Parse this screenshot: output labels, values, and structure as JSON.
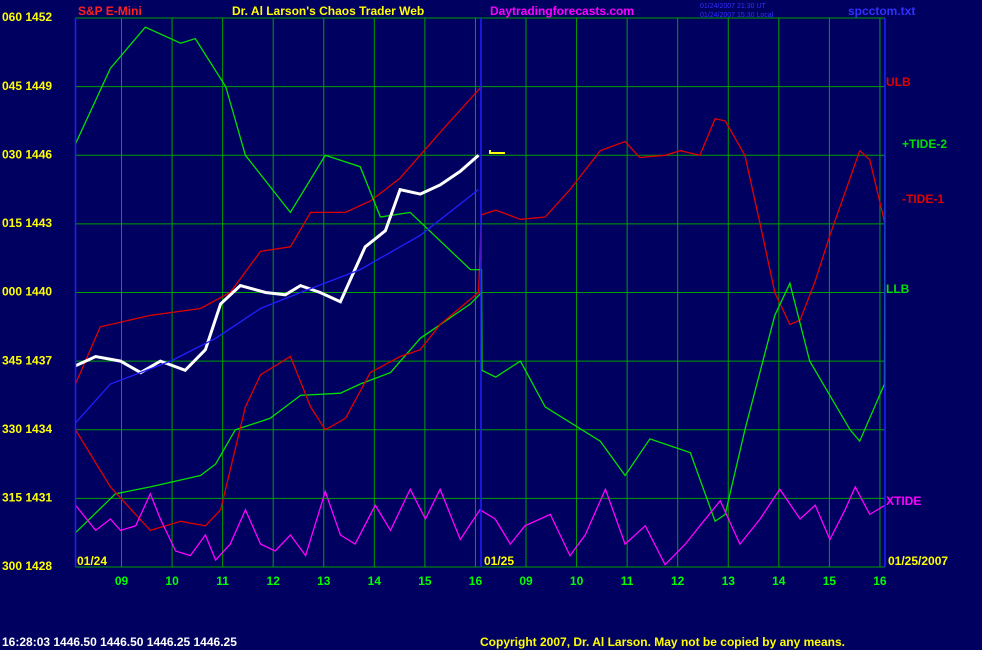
{
  "chart_data": {
    "type": "line",
    "title": "Dr. Al Larson's Chaos Trader Web",
    "instrument": "S&P E-Mini",
    "website": "Daytradingforecasts.com",
    "timestamp_lines": [
      "01/24/2007 21:30 UT",
      "01/24/2007 15:30 Local"
    ],
    "file_name": "spcctom.txt",
    "date_labels": [
      "01/24",
      "01/25",
      "01/25/2007"
    ],
    "status_line": "16:28:03  1446.50 1446.50 1446.25 1446.25",
    "copyright": "Copyright 2007, Dr. Al Larson. May not be copied by any means.",
    "xlim": [
      8.09,
      24.1
    ],
    "xticks": [
      {
        "value": 9,
        "label": "09"
      },
      10,
      11,
      12,
      13,
      14,
      15,
      16,
      {
        "value": 17,
        "label": "09"
      },
      {
        "value": 18,
        "label": "10"
      },
      {
        "value": 19,
        "label": "11"
      },
      {
        "value": 20,
        "label": "12"
      },
      {
        "value": 21,
        "label": "13"
      },
      {
        "value": 22,
        "label": "14"
      },
      {
        "value": 23,
        "label": "15"
      },
      {
        "value": 24,
        "label": "16"
      }
    ],
    "ylim": [
      1428,
      1452
    ],
    "yticks": [
      {
        "value": 1452,
        "label": "060 1452"
      },
      {
        "value": 1449,
        "label": "045 1449"
      },
      {
        "value": 1446,
        "label": "030 1446"
      },
      {
        "value": 1443,
        "label": "015 1443"
      },
      {
        "value": 1440,
        "label": "000 1440"
      },
      {
        "value": 1437,
        "label": "345 1437"
      },
      {
        "value": 1434,
        "label": "330 1434"
      },
      {
        "value": 1431,
        "label": "315 1431"
      },
      {
        "value": 1428,
        "label": "300 1428"
      }
    ],
    "grid": true,
    "series": [
      {
        "name": "ULB",
        "color": "#e00000",
        "x": [
          8.09,
          8.58,
          9.57,
          10.56,
          11.15,
          11.75,
          12.34,
          12.74,
          13.43,
          13.92,
          14.51,
          15.3,
          16.12
        ],
        "values": [
          1436,
          1438.5,
          1439,
          1439.3,
          1440,
          1441.8,
          1442,
          1443.5,
          1443.5,
          1444,
          1445,
          1447,
          1449
        ]
      },
      {
        "name": "LLB",
        "color": "#00e000",
        "x": [
          8.09,
          8.88,
          9.57,
          10.56,
          10.86,
          11.25,
          11.94,
          12.54,
          13.33,
          13.72,
          14.32,
          14.91,
          15.9,
          16.12
        ],
        "values": [
          1429.5,
          1431.2,
          1431.5,
          1432,
          1432.5,
          1434,
          1434.5,
          1435.5,
          1435.6,
          1436,
          1436.5,
          1438,
          1439.5,
          1440
        ]
      },
      {
        "name": "-TIDE-1",
        "color": "#e00000",
        "x": [
          8.09,
          8.78,
          9.57,
          10.17,
          10.66,
          10.96,
          11.45,
          11.75,
          12.34,
          12.74,
          13.03,
          13.43,
          13.92,
          14.51,
          14.91,
          15.3,
          16.06,
          16.12,
          16.4,
          16.89,
          17.38,
          17.87,
          18.47,
          18.96,
          19.25,
          19.75,
          20.05,
          20.44,
          20.74,
          20.94,
          21.33,
          21.63,
          21.92,
          22.22,
          22.42,
          22.72,
          23.01,
          23.41,
          23.6,
          23.8,
          24.1
        ],
        "values": [
          1434.0,
          1431.5,
          1429.6,
          1430.0,
          1429.8,
          1430.5,
          1435.0,
          1436.4,
          1437.2,
          1435.0,
          1434.0,
          1434.5,
          1436.5,
          1437.2,
          1437.5,
          1438.6,
          1440.0,
          1443.4,
          1443.6,
          1443.2,
          1443.3,
          1444.5,
          1446.2,
          1446.6,
          1445.9,
          1446.0,
          1446.2,
          1446.0,
          1447.6,
          1447.5,
          1446.0,
          1443.0,
          1440.0,
          1438.6,
          1438.8,
          1440.5,
          1442.5,
          1445.0,
          1446.2,
          1445.8,
          1443.0
        ]
      },
      {
        "name": "+TIDE-2",
        "color": "#00e000",
        "x": [
          8.09,
          8.78,
          9.47,
          10.17,
          10.46,
          11.06,
          11.45,
          12.34,
          13.03,
          13.72,
          14.12,
          14.71,
          15.9,
          16.12,
          16.13,
          16.4,
          16.89,
          17.38,
          18.47,
          18.96,
          19.45,
          20.25,
          20.74,
          20.94,
          21.33,
          21.92,
          22.22,
          22.61,
          23.41,
          23.6,
          24.09,
          24.1
        ],
        "values": [
          1446.5,
          1449.8,
          1451.6,
          1450.9,
          1451.1,
          1449.0,
          1446.0,
          1443.5,
          1446.0,
          1445.5,
          1443.3,
          1443.5,
          1441.0,
          1441.0,
          1436.6,
          1436.3,
          1437.0,
          1435.0,
          1433.5,
          1432.0,
          1433.6,
          1433.0,
          1430.0,
          1430.3,
          1434.0,
          1439.0,
          1440.4,
          1437.0,
          1434.0,
          1433.5,
          1436.0,
          1446.0
        ]
      },
      {
        "name": "XTIDE",
        "color": "#ff00ff",
        "x": [
          8.09,
          8.49,
          8.78,
          8.98,
          9.28,
          9.57,
          9.77,
          10.07,
          10.36,
          10.66,
          10.86,
          11.15,
          11.45,
          11.75,
          12.04,
          12.34,
          12.64,
          13.03,
          13.33,
          13.62,
          14.02,
          14.32,
          14.71,
          15.01,
          15.3,
          15.7,
          16.09,
          16.39,
          16.69,
          16.98,
          17.48,
          17.87,
          18.17,
          18.57,
          18.96,
          19.36,
          19.75,
          20.15,
          20.44,
          20.84,
          21.23,
          21.63,
          22.02,
          22.42,
          22.72,
          23.01,
          23.31,
          23.51,
          23.8,
          24.1
        ],
        "values": [
          1430.7,
          1429.6,
          1430.1,
          1429.6,
          1429.8,
          1431.2,
          1430.1,
          1428.7,
          1428.5,
          1429.4,
          1428.3,
          1429.0,
          1430.5,
          1429.0,
          1428.7,
          1429.4,
          1428.5,
          1431.3,
          1429.4,
          1429.0,
          1430.7,
          1429.6,
          1431.4,
          1430.1,
          1431.4,
          1429.2,
          1430.5,
          1430.1,
          1429.0,
          1429.8,
          1430.3,
          1428.5,
          1429.4,
          1431.4,
          1429.0,
          1429.8,
          1428.1,
          1429.0,
          1429.8,
          1430.9,
          1429.0,
          1430.1,
          1431.4,
          1430.1,
          1430.7,
          1429.2,
          1430.5,
          1431.5,
          1430.3,
          1430.7
        ]
      },
      {
        "color": "#ffffff",
        "x": [
          8.09,
          8.49,
          8.98,
          9.38,
          9.77,
          10.26,
          10.66,
          10.96,
          11.35,
          11.85,
          12.24,
          12.54,
          12.93,
          13.33,
          13.82,
          14.22,
          14.51,
          14.91,
          15.3,
          15.7,
          16.06
        ],
        "values": [
          1436.8,
          1437.2,
          1437,
          1436.5,
          1437,
          1436.6,
          1437.5,
          1439.5,
          1440.3,
          1440,
          1439.9,
          1440.3,
          1440,
          1439.6,
          1442,
          1442.7,
          1444.5,
          1444.3,
          1444.7,
          1445.3,
          1446
        ]
      },
      {
        "color": "#2020ff",
        "x": [
          8.09,
          8.78,
          9.97,
          10.86,
          11.75,
          12.54,
          13.72,
          14.91,
          16.06
        ],
        "values": [
          1434.3,
          1436,
          1437,
          1438,
          1439.3,
          1440,
          1441,
          1442.5,
          1444.5
        ]
      }
    ]
  }
}
